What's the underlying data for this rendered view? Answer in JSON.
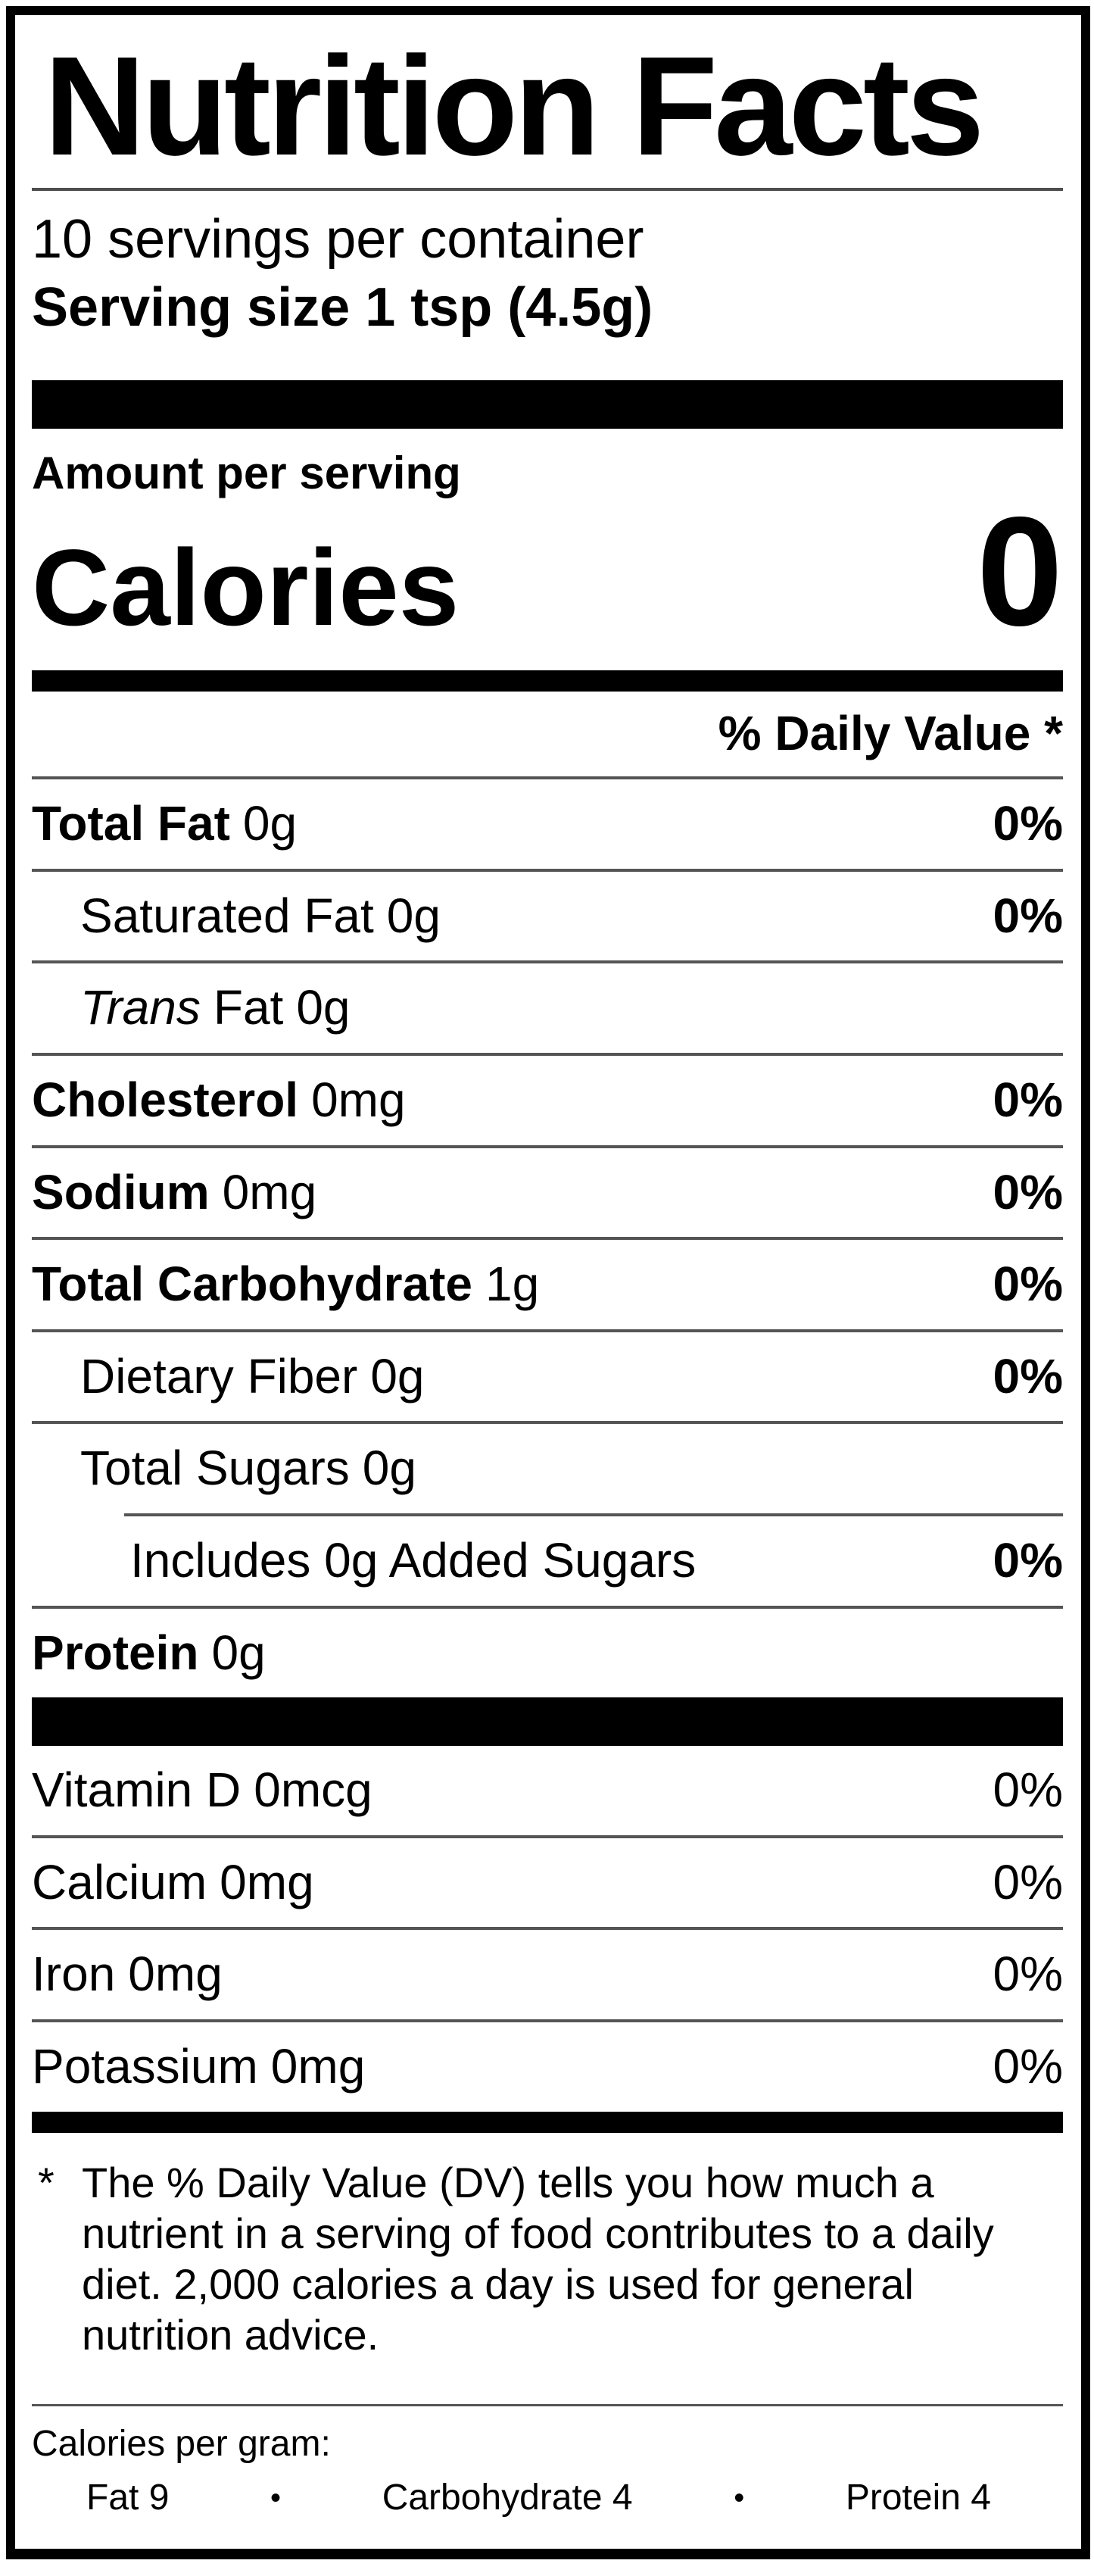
{
  "label": {
    "title": "Nutrition Facts",
    "servings_per_container": "10 servings per container",
    "serving_size": "Serving size 1 tsp (4.5g)",
    "calories_section": {
      "amount_per_serving": "Amount per serving",
      "calories_label": "Calories",
      "calories_value": "0"
    },
    "daily_value_header": "% Daily Value *",
    "nutrients": [
      {
        "name": "Total Fat",
        "amount": "0g",
        "dv": "0%"
      },
      {
        "name": "Saturated Fat",
        "amount": "0g",
        "dv": "0%"
      },
      {
        "name_italic": "Trans",
        "name": "Fat",
        "amount": "0g",
        "dv": ""
      },
      {
        "name": "Cholesterol",
        "amount": "0mg",
        "dv": "0%"
      },
      {
        "name": "Sodium",
        "amount": "0mg",
        "dv": "0%"
      },
      {
        "name": "Total Carbohydrate",
        "amount": "1g",
        "dv": "0%"
      },
      {
        "name": "Dietary Fiber",
        "amount": "0g",
        "dv": "0%"
      },
      {
        "name": "Total Sugars",
        "amount": "0g",
        "dv": ""
      },
      {
        "name": "Includes 0g Added Sugars",
        "amount": "",
        "dv": "0%"
      },
      {
        "name": "Protein",
        "amount": "0g",
        "dv": ""
      }
    ],
    "vitamins": [
      {
        "name": "Vitamin D",
        "amount": "0mcg",
        "dv": "0%"
      },
      {
        "name": "Calcium",
        "amount": "0mg",
        "dv": "0%"
      },
      {
        "name": "Iron",
        "amount": "0mg",
        "dv": "0%"
      },
      {
        "name": "Potassium",
        "amount": "0mg",
        "dv": "0%"
      }
    ],
    "footnote": {
      "marker": "*",
      "text": "The % Daily Value (DV) tells you how much a nutrient in a serving of food contributes to a daily diet. 2,000 calories a day is used for general nutrition advice."
    },
    "calories_per_gram": {
      "label": "Calories per gram:",
      "bullet": "•",
      "items": [
        {
          "text": "Fat 9"
        },
        {
          "text": "Carbohydrate 4"
        },
        {
          "text": "Protein 4"
        }
      ]
    },
    "colors": {
      "text": "#000000",
      "background": "#ffffff",
      "hairline": "#555555",
      "bar": "#000000"
    }
  }
}
